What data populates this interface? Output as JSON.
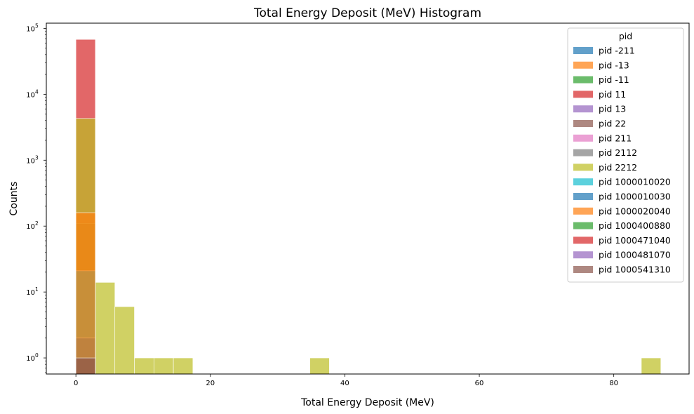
{
  "chart_data": {
    "type": "histogram",
    "title": "Total Energy Deposit (MeV) Histogram",
    "xlabel": "Total Energy Deposit (MeV)",
    "ylabel": "Counts",
    "xlim": [
      -4.4,
      91.2
    ],
    "ylim": [
      0.57,
      120000
    ],
    "yscale": "log",
    "bin_width": 2.9,
    "x_ticks": [
      0,
      20,
      40,
      60,
      80
    ],
    "x_tick_labels": [
      "0",
      "20",
      "40",
      "60",
      "80"
    ],
    "y_ticks": [
      1,
      10,
      100,
      1000,
      10000,
      100000
    ],
    "y_tick_labels": [
      {
        "base": "10",
        "exp": "0"
      },
      {
        "base": "10",
        "exp": "1"
      },
      {
        "base": "10",
        "exp": "2"
      },
      {
        "base": "10",
        "exp": "3"
      },
      {
        "base": "10",
        "exp": "4"
      },
      {
        "base": "10",
        "exp": "5"
      }
    ],
    "legend": {
      "title": "pid",
      "placement": "top-right"
    },
    "series": [
      {
        "name": "pid -211",
        "color": "#1f77b4",
        "bins": []
      },
      {
        "name": "pid -13",
        "color": "#ff7f0e",
        "bins": []
      },
      {
        "name": "pid -11",
        "color": "#2ca02c",
        "bins": []
      },
      {
        "name": "pid 11",
        "color": "#d62728",
        "bins": [
          {
            "x0": 0,
            "count": 68000
          }
        ]
      },
      {
        "name": "pid 13",
        "color": "#9467bd",
        "bins": []
      },
      {
        "name": "pid 22",
        "color": "#8c564b",
        "bins": [
          {
            "x0": 0,
            "count": 110
          }
        ]
      },
      {
        "name": "pid 211",
        "color": "#e377c2",
        "bins": []
      },
      {
        "name": "pid 2112",
        "color": "#7f7f7f",
        "bins": []
      },
      {
        "name": "pid 2212",
        "color": "#bcbd22",
        "bins": [
          {
            "x0": 0,
            "count": 4300
          },
          {
            "x0": 2.9,
            "count": 14
          },
          {
            "x0": 5.8,
            "count": 6
          },
          {
            "x0": 8.7,
            "count": 1
          },
          {
            "x0": 11.6,
            "count": 1
          },
          {
            "x0": 14.5,
            "count": 1
          },
          {
            "x0": 34.8,
            "count": 1
          },
          {
            "x0": 84.1,
            "count": 1
          }
        ]
      },
      {
        "name": "pid 1000010020",
        "color": "#17becf",
        "bins": [
          {
            "x0": 0,
            "count": 21
          }
        ]
      },
      {
        "name": "pid 1000010030",
        "color": "#1f77b4",
        "bins": [
          {
            "x0": 0,
            "count": 2
          }
        ]
      },
      {
        "name": "pid 1000020040",
        "color": "#ff7f0e",
        "bins": [
          {
            "x0": 0,
            "count": 160
          }
        ]
      },
      {
        "name": "pid 1000400880",
        "color": "#2ca02c",
        "bins": []
      },
      {
        "name": "pid 1000471040",
        "color": "#d62728",
        "bins": []
      },
      {
        "name": "pid 1000481070",
        "color": "#9467bd",
        "bins": []
      },
      {
        "name": "pid 1000541310",
        "color": "#8c564b",
        "bins": [
          {
            "x0": 0,
            "count": 1
          }
        ]
      }
    ]
  }
}
